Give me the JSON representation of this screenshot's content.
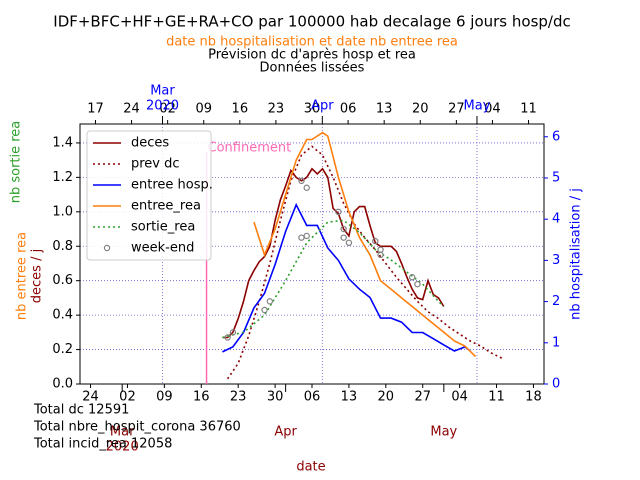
{
  "chart_data": {
    "type": "line",
    "title": "IDF+BFC+HF+GE+RA+CO par 100000 hab decalage 6 jours hosp/dc",
    "subtitle": "date nb hospitalisation et date nb entree rea",
    "subtitle2": "Prévision dc d'après hosp et rea",
    "subtitle3": "Données lissées",
    "xlabel": "date",
    "ylabel_parts": [
      {
        "text": "nb sortie rea",
        "color": "#2ca02c"
      },
      {
        "text": "nb entree rea",
        "color": "#ff7f0e"
      },
      {
        "text": "deces / j",
        "color": "#8b0000"
      }
    ],
    "y2label": "nb hospitalisation / j",
    "totals": [
      "Total dc 12591",
      "Total nbre_hospit_corona 36760",
      "Total incid_rea 12058"
    ],
    "xlim": [
      "2020-02-22",
      "2020-05-20"
    ],
    "xticks": [
      {
        "value": "2020-02-24",
        "label": "24"
      },
      {
        "value": "2020-03-02",
        "label": "02"
      },
      {
        "value": "2020-03-09",
        "label": "09"
      },
      {
        "value": "2020-03-16",
        "label": "16"
      },
      {
        "value": "2020-03-23",
        "label": "23"
      },
      {
        "value": "2020-03-30",
        "label": "30"
      },
      {
        "value": "2020-04-06",
        "label": "06"
      },
      {
        "value": "2020-04-13",
        "label": "13"
      },
      {
        "value": "2020-04-20",
        "label": "20"
      },
      {
        "value": "2020-04-27",
        "label": "27"
      },
      {
        "value": "2020-05-04",
        "label": "04"
      },
      {
        "value": "2020-05-11",
        "label": "11"
      },
      {
        "value": "2020-05-18",
        "label": "18"
      }
    ],
    "xmonths": [
      {
        "value": "2020-03-01",
        "label": "Mar",
        "sublabel": "2020"
      },
      {
        "value": "2020-04-01",
        "label": "Apr"
      },
      {
        "value": "2020-05-01",
        "label": "May"
      }
    ],
    "x2lim": [
      "2020-02-14",
      "2020-05-14"
    ],
    "x2ticks": [
      {
        "value": "2020-02-17",
        "label": "17"
      },
      {
        "value": "2020-02-24",
        "label": "24"
      },
      {
        "value": "2020-03-02",
        "label": "02"
      },
      {
        "value": "2020-03-09",
        "label": "09"
      },
      {
        "value": "2020-03-16",
        "label": "16"
      },
      {
        "value": "2020-03-23",
        "label": "23"
      },
      {
        "value": "2020-03-30",
        "label": "30"
      },
      {
        "value": "2020-04-06",
        "label": "06"
      },
      {
        "value": "2020-04-13",
        "label": "13"
      },
      {
        "value": "2020-04-20",
        "label": "20"
      },
      {
        "value": "2020-04-27",
        "label": "27"
      },
      {
        "value": "2020-05-04",
        "label": "04"
      },
      {
        "value": "2020-05-11",
        "label": "11"
      }
    ],
    "x2months": [
      {
        "value": "2020-03-01",
        "label": "Mar",
        "sublabel": "2020"
      },
      {
        "value": "2020-04-01",
        "label": "Apr"
      },
      {
        "value": "2020-05-01",
        "label": "May"
      }
    ],
    "ylim": [
      0,
      1.51
    ],
    "yticks": [
      {
        "value": 0,
        "label": "0.0"
      },
      {
        "value": 0.2,
        "label": "0.2"
      },
      {
        "value": 0.4,
        "label": "0.4"
      },
      {
        "value": 0.6,
        "label": "0.6"
      },
      {
        "value": 0.8,
        "label": "0.8"
      },
      {
        "value": 1,
        "label": "1.0"
      },
      {
        "value": 1.2,
        "label": "1.2"
      },
      {
        "value": 1.4,
        "label": "1.4"
      }
    ],
    "y2lim": [
      0,
      6.31
    ],
    "y2ticks": [
      0,
      1,
      2,
      3,
      4,
      5,
      6
    ],
    "grid": true,
    "legend": "upper left",
    "vline": {
      "x": "2020-03-17",
      "label": "Confinement",
      "color": "#ff69b4"
    },
    "series": [
      {
        "name": "deces",
        "color": "#8b0000",
        "style": "solid",
        "x": [
          "2020-03-20",
          "2020-03-21",
          "2020-03-22",
          "2020-03-23",
          "2020-03-24",
          "2020-03-25",
          "2020-03-26",
          "2020-03-27",
          "2020-03-28",
          "2020-03-29",
          "2020-03-30",
          "2020-03-31",
          "2020-04-01",
          "2020-04-02",
          "2020-04-03",
          "2020-04-04",
          "2020-04-05",
          "2020-04-06",
          "2020-04-07",
          "2020-04-08",
          "2020-04-09",
          "2020-04-10",
          "2020-04-11",
          "2020-04-12",
          "2020-04-13",
          "2020-04-14",
          "2020-04-15",
          "2020-04-16",
          "2020-04-17",
          "2020-04-18",
          "2020-04-19",
          "2020-04-20",
          "2020-04-21",
          "2020-04-22",
          "2020-04-23",
          "2020-04-24",
          "2020-04-25",
          "2020-04-26",
          "2020-04-27",
          "2020-04-28",
          "2020-04-29",
          "2020-04-30",
          "2020-05-01"
        ],
        "values": [
          0.27,
          0.27,
          0.3,
          0.38,
          0.48,
          0.6,
          0.66,
          0.71,
          0.74,
          0.8,
          0.95,
          1.07,
          1.15,
          1.24,
          1.2,
          1.18,
          1.2,
          1.25,
          1.22,
          1.25,
          1.2,
          1.02,
          0.99,
          0.9,
          0.86,
          1.0,
          1.03,
          1.03,
          0.92,
          0.82,
          0.8,
          0.8,
          0.8,
          0.77,
          0.7,
          0.62,
          0.55,
          0.5,
          0.49,
          0.6,
          0.52,
          0.5,
          0.45
        ]
      },
      {
        "name": "prev dc",
        "color": "#8b0000",
        "style": "dotted",
        "x": [
          "2020-03-21",
          "2020-03-23",
          "2020-03-25",
          "2020-03-27",
          "2020-03-29",
          "2020-03-31",
          "2020-04-02",
          "2020-04-04",
          "2020-04-06",
          "2020-04-08",
          "2020-04-10",
          "2020-04-12",
          "2020-04-14",
          "2020-04-16",
          "2020-04-18",
          "2020-04-20",
          "2020-04-22",
          "2020-04-24",
          "2020-04-26",
          "2020-04-28",
          "2020-04-30",
          "2020-05-02",
          "2020-05-04",
          "2020-05-06",
          "2020-05-08",
          "2020-05-10",
          "2020-05-12"
        ],
        "values": [
          0.03,
          0.12,
          0.28,
          0.48,
          0.7,
          0.95,
          1.18,
          1.33,
          1.38,
          1.33,
          1.2,
          1.05,
          0.93,
          0.85,
          0.78,
          0.7,
          0.62,
          0.55,
          0.48,
          0.42,
          0.38,
          0.33,
          0.29,
          0.25,
          0.22,
          0.18,
          0.15
        ]
      },
      {
        "name": "entree hosp.",
        "color": "#0000ff",
        "style": "solid",
        "axis": "y2",
        "x": [
          "2020-03-20",
          "2020-03-22",
          "2020-03-24",
          "2020-03-26",
          "2020-03-28",
          "2020-03-30",
          "2020-04-01",
          "2020-04-03",
          "2020-04-05",
          "2020-04-07",
          "2020-04-09",
          "2020-04-11",
          "2020-04-13",
          "2020-04-15",
          "2020-04-17",
          "2020-04-19",
          "2020-04-21",
          "2020-04-23",
          "2020-04-25",
          "2020-04-27",
          "2020-04-29",
          "2020-05-01",
          "2020-05-03",
          "2020-05-05",
          "2020-05-06"
        ],
        "values": [
          0.78,
          0.9,
          1.25,
          1.85,
          2.2,
          2.9,
          3.7,
          4.35,
          3.85,
          3.85,
          3.3,
          3.0,
          2.55,
          2.3,
          2.1,
          1.6,
          1.6,
          1.5,
          1.25,
          1.25,
          1.1,
          0.95,
          0.8,
          0.9,
          0.8
        ]
      },
      {
        "name": "entree_rea",
        "color": "#ff7f0e",
        "style": "solid",
        "x": [
          "2020-03-26",
          "2020-03-28",
          "2020-03-30",
          "2020-04-01",
          "2020-04-03",
          "2020-04-05",
          "2020-04-06",
          "2020-04-08",
          "2020-04-09",
          "2020-04-11",
          "2020-04-13",
          "2020-04-15",
          "2020-04-17",
          "2020-04-19",
          "2020-04-21",
          "2020-04-23",
          "2020-04-25",
          "2020-04-27",
          "2020-04-29",
          "2020-05-01",
          "2020-05-03",
          "2020-05-05",
          "2020-05-07"
        ],
        "values": [
          0.94,
          0.75,
          0.9,
          1.1,
          1.3,
          1.42,
          1.42,
          1.46,
          1.44,
          1.2,
          1.0,
          0.85,
          0.75,
          0.6,
          0.55,
          0.5,
          0.45,
          0.4,
          0.35,
          0.3,
          0.25,
          0.22,
          0.16
        ]
      },
      {
        "name": "sortie_rea",
        "color": "#2ca02c",
        "style": "dotted",
        "x": [
          "2020-03-20",
          "2020-03-24",
          "2020-03-28",
          "2020-04-01",
          "2020-04-05",
          "2020-04-09",
          "2020-04-12",
          "2020-04-15",
          "2020-04-18",
          "2020-04-21",
          "2020-04-24",
          "2020-04-27",
          "2020-04-30",
          "2020-05-01"
        ],
        "values": [
          0.27,
          0.3,
          0.4,
          0.6,
          0.82,
          0.94,
          0.95,
          0.88,
          0.78,
          0.72,
          0.65,
          0.58,
          0.48,
          0.45
        ]
      },
      {
        "name": "week-end",
        "color": "#808080",
        "style": "markers",
        "x": [
          "2020-03-21",
          "2020-03-22",
          "2020-03-28",
          "2020-03-29",
          "2020-04-04",
          "2020-04-05",
          "2020-04-04",
          "2020-04-05",
          "2020-04-11",
          "2020-04-12",
          "2020-04-12",
          "2020-04-13",
          "2020-04-18",
          "2020-04-19",
          "2020-04-19",
          "2020-04-25",
          "2020-04-26"
        ],
        "values": [
          0.27,
          0.3,
          0.43,
          0.48,
          1.18,
          1.14,
          0.85,
          0.86,
          1.0,
          0.9,
          0.85,
          0.82,
          0.83,
          0.78,
          0.75,
          0.62,
          0.58
        ]
      }
    ]
  }
}
